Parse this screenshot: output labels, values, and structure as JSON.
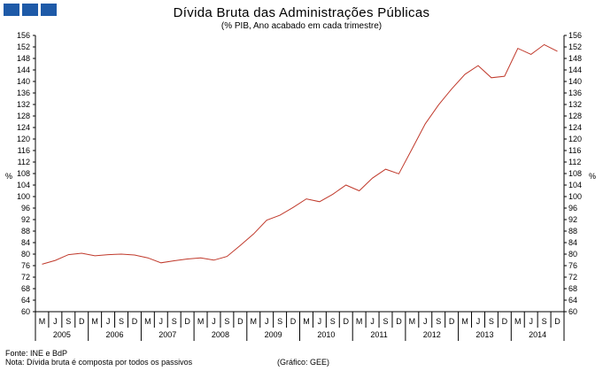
{
  "header": {
    "title": "Dívida Bruta das Administrações Públicas",
    "subtitle": "(% PIB, Ano acabado em cada trimestre)"
  },
  "colors": {
    "logo": "#1e5aa8",
    "line": "#c0392b",
    "axis": "#000000"
  },
  "footer": {
    "source": "Fonte: INE e BdP",
    "note": "Nota: Dívida bruta é composta por todos os passivos",
    "credit": "(Gráfico: GEE)"
  },
  "chart_data": {
    "type": "line",
    "title": "Dívida Bruta das Administrações Públicas",
    "subtitle": "(% PIB, Ano acabado em cada trimestre)",
    "ylabel_left": "%",
    "ylabel_right": "%",
    "ylim": [
      60,
      156
    ],
    "ytick_step": 4,
    "grid": false,
    "quarter_labels": [
      "M",
      "J",
      "S",
      "D",
      "M",
      "J",
      "S",
      "D",
      "M",
      "J",
      "S",
      "D",
      "M",
      "J",
      "S",
      "D",
      "M",
      "J",
      "S",
      "D",
      "M",
      "J",
      "S",
      "D",
      "M",
      "J",
      "S",
      "D",
      "M",
      "J",
      "S",
      "D",
      "M",
      "J",
      "S",
      "D",
      "M",
      "J",
      "S",
      "D"
    ],
    "years": [
      "2005",
      "2006",
      "2007",
      "2008",
      "2009",
      "2010",
      "2011",
      "2012",
      "2013",
      "2014"
    ],
    "series": [
      {
        "values": [
          76.5,
          77.8,
          79.8,
          80.3,
          79.4,
          79.8,
          80.0,
          79.7,
          78.7,
          77.0,
          77.7,
          78.3,
          78.7,
          77.9,
          79.2,
          83.0,
          87.0,
          91.8,
          93.5,
          96.2,
          99.2,
          98.2,
          100.8,
          104.0,
          102.0,
          106.4,
          109.5,
          107.9,
          116.6,
          125.3,
          131.8,
          137.4,
          142.5,
          145.5,
          141.3,
          141.8,
          151.5,
          149.4,
          152.8,
          150.5
        ]
      }
    ]
  }
}
